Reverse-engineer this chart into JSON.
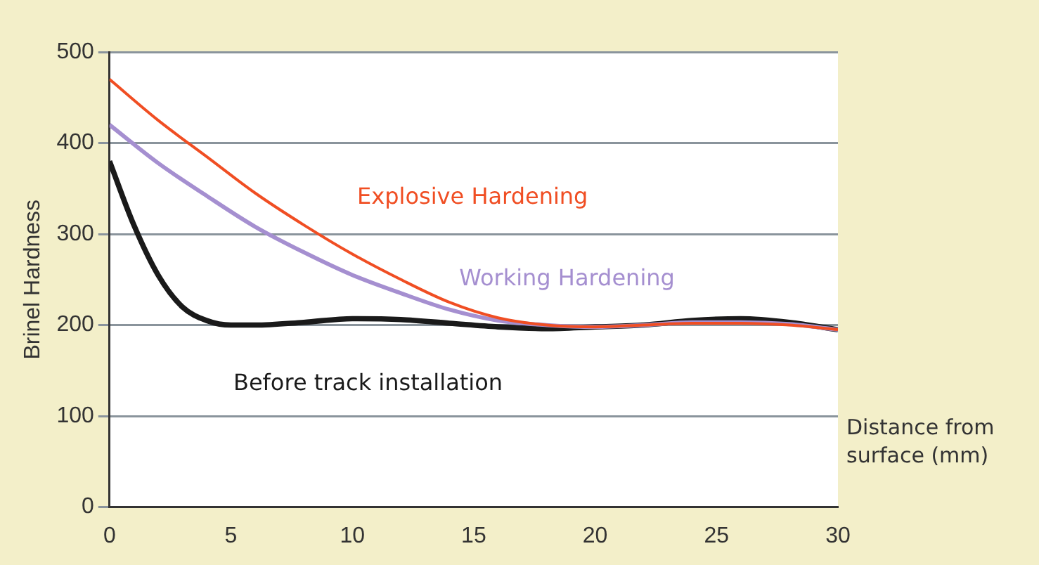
{
  "chart_data": {
    "type": "line",
    "xlabel": "Distance from surface (mm)",
    "ylabel": "Brinel Hardness",
    "xlim": [
      0,
      30
    ],
    "xticks": [
      0,
      5,
      10,
      15,
      20,
      25,
      30
    ],
    "ylim": [
      0,
      500
    ],
    "yticks": [
      0,
      100,
      200,
      300,
      400,
      500
    ],
    "grid": "y",
    "legend": false,
    "marker": "none",
    "line_style": "solid",
    "series": [
      {
        "name": "Explosive Hardening",
        "color": "#f04e23",
        "x": [
          0,
          2,
          4,
          6,
          8,
          10,
          12,
          14,
          16,
          18,
          20,
          22,
          24,
          26,
          28,
          30
        ],
        "values": [
          470,
          425,
          385,
          345,
          310,
          278,
          250,
          225,
          208,
          200,
          198,
          200,
          202,
          202,
          200,
          195
        ]
      },
      {
        "name": "Working Hardening",
        "color": "#a58fd0",
        "x": [
          0,
          2,
          4,
          6,
          8,
          10,
          12,
          14,
          16,
          18,
          20,
          22,
          24,
          26,
          28,
          30
        ],
        "values": [
          420,
          378,
          342,
          308,
          280,
          255,
          235,
          217,
          205,
          200,
          198,
          200,
          203,
          203,
          201,
          195
        ]
      },
      {
        "name": "Before track installation",
        "color": "#1a1a1a",
        "x": [
          0,
          1,
          2,
          3,
          4,
          5,
          6,
          8,
          10,
          12,
          14,
          16,
          18,
          20,
          22,
          24,
          26,
          28,
          30
        ],
        "values": [
          380,
          310,
          255,
          220,
          205,
          200,
          200,
          203,
          207,
          206,
          202,
          198,
          196,
          198,
          200,
          205,
          207,
          203,
          195
        ]
      }
    ]
  }
}
